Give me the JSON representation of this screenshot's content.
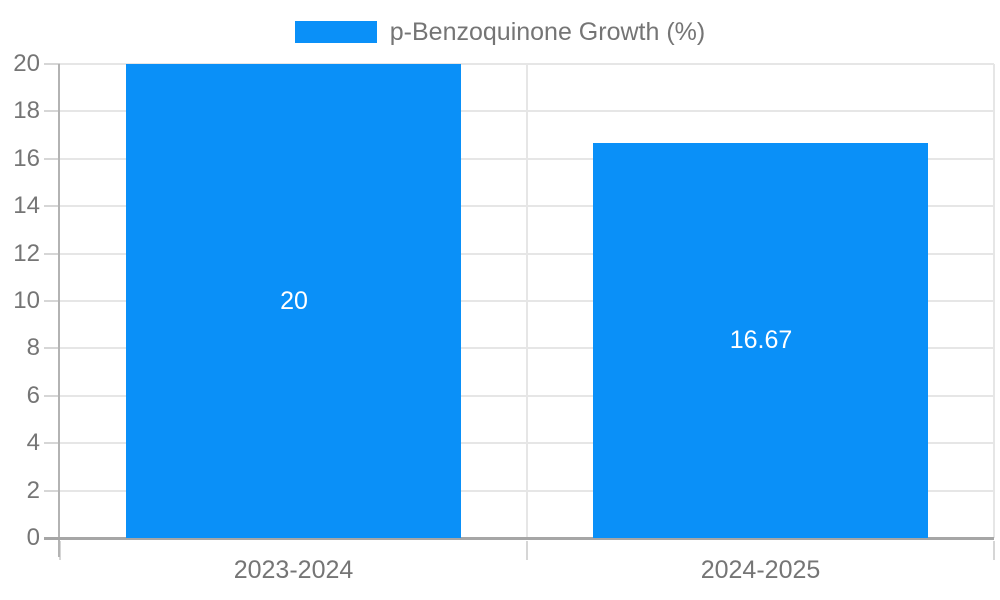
{
  "legend": {
    "label": "p-Benzoquinone Growth (%)"
  },
  "colors": {
    "bar": "#0a90f8",
    "bar_label_text": "#ffffff",
    "axis_text": "#757575",
    "legend_text": "#757575",
    "gridline": "#e6e6e6",
    "minor_tick": "#d6d6d6",
    "baseline": "#a6a6a6",
    "axis_line": "#b3b3b3",
    "background": "#ffffff"
  },
  "chart_data": {
    "type": "bar",
    "title": "p-Benzoquinone Growth (%)",
    "categories": [
      "2023-2024",
      "2024-2025"
    ],
    "values": [
      20,
      16.67
    ],
    "bar_labels": [
      "20",
      "16.67"
    ],
    "xlabel": "",
    "ylabel": "",
    "ylim": [
      0,
      20
    ],
    "ytick_step": 2,
    "ytick_labels": [
      "0",
      "2",
      "4",
      "6",
      "8",
      "10",
      "12",
      "14",
      "16",
      "18",
      "20"
    ],
    "grid": true,
    "legend_position": "top-center",
    "bar_label_position": "center"
  }
}
